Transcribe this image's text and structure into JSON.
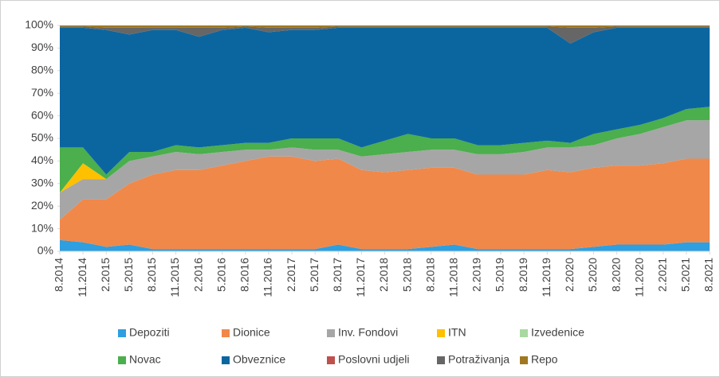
{
  "chart_data": {
    "type": "stacked_area",
    "categories": [
      "8.2014",
      "11.2014",
      "2.2015",
      "5.2015",
      "8.2015",
      "11.2015",
      "2.2016",
      "5.2016",
      "8.2016",
      "11.2016",
      "2.2017",
      "5.2017",
      "8.2017",
      "11.2017",
      "2.2018",
      "5.2018",
      "8.2018",
      "11.2018",
      "2.2019",
      "5.2019",
      "8.2019",
      "11.2019",
      "2.2020",
      "5.2020",
      "8.2020",
      "11.2020",
      "2.2021",
      "5.2021",
      "8.2021"
    ],
    "ylim": [
      0,
      100
    ],
    "yticks": [
      {
        "value": 0,
        "label": "0%"
      },
      {
        "value": 10,
        "label": "10%"
      },
      {
        "value": 20,
        "label": "20%"
      },
      {
        "value": 30,
        "label": "30%"
      },
      {
        "value": 40,
        "label": "40%"
      },
      {
        "value": 50,
        "label": "50%"
      },
      {
        "value": 60,
        "label": "60%"
      },
      {
        "value": 70,
        "label": "70%"
      },
      {
        "value": 80,
        "label": "80%"
      },
      {
        "value": 90,
        "label": "90%"
      },
      {
        "value": 100,
        "label": "100%"
      }
    ],
    "legend": "bottom",
    "series": [
      {
        "name": "Depoziti",
        "color": "#2e9fe0",
        "values": [
          5,
          4,
          2,
          3,
          1,
          1,
          1,
          1,
          1,
          1,
          1,
          1,
          3,
          1,
          1,
          1,
          2,
          3,
          1,
          1,
          1,
          1,
          1,
          2,
          3,
          3,
          3,
          4,
          4
        ]
      },
      {
        "name": "Dionice",
        "color": "#f0884a",
        "values": [
          9,
          19,
          21,
          27,
          33,
          35,
          35,
          37,
          39,
          41,
          41,
          39,
          38,
          35,
          34,
          35,
          35,
          34,
          33,
          33,
          33,
          35,
          34,
          35,
          35,
          35,
          36,
          37,
          37
        ]
      },
      {
        "name": "Inv. Fondovi",
        "color": "#a6a6a6",
        "values": [
          12,
          9,
          9,
          10,
          8,
          8,
          7,
          6,
          5,
          3,
          4,
          5,
          4,
          6,
          8,
          8,
          8,
          8,
          9,
          9,
          10,
          10,
          11,
          10,
          12,
          14,
          16,
          17,
          17
        ]
      },
      {
        "name": "ITN",
        "color": "#ffc000",
        "values": [
          0,
          7,
          0,
          0,
          0,
          0,
          0,
          0,
          0,
          0,
          0,
          0,
          0,
          0,
          0,
          0,
          0,
          0,
          0,
          0,
          0,
          0,
          0,
          0,
          0,
          0,
          0,
          0,
          0
        ]
      },
      {
        "name": "Izvedenice",
        "color": "#a9d9a0",
        "values": [
          0,
          0,
          0,
          0,
          0,
          0,
          0,
          0,
          0,
          0,
          0,
          0,
          0,
          0,
          0,
          0,
          0,
          0,
          0,
          0,
          0,
          0,
          0,
          0,
          0,
          0,
          0,
          0,
          0
        ]
      },
      {
        "name": "Novac",
        "color": "#4aaf4c",
        "values": [
          20,
          7,
          2,
          4,
          2,
          3,
          3,
          3,
          3,
          3,
          4,
          5,
          5,
          4,
          6,
          8,
          5,
          5,
          4,
          4,
          4,
          3,
          2,
          5,
          4,
          4,
          4,
          5,
          6
        ]
      },
      {
        "name": "Obveznice",
        "color": "#0b66a0",
        "values": [
          53,
          53,
          64,
          52,
          54,
          51,
          49,
          51,
          51,
          49,
          48,
          48,
          49,
          53,
          50,
          47,
          49,
          49,
          52,
          52,
          51,
          50,
          44,
          45,
          45,
          43,
          40,
          36,
          35
        ]
      },
      {
        "name": "Poslovni udjeli",
        "color": "#c0504d",
        "values": [
          0,
          0,
          0,
          0,
          0,
          0,
          0,
          0,
          0,
          0,
          0,
          0,
          0,
          0,
          0,
          0,
          0,
          0,
          0,
          0,
          0,
          0,
          0,
          0,
          0,
          0,
          0,
          0,
          0
        ]
      },
      {
        "name": "Potraživanja",
        "color": "#666666",
        "values": [
          0.5,
          0.5,
          1,
          3,
          1,
          1,
          4,
          1,
          0.5,
          2,
          1,
          1,
          0.5,
          0.5,
          0.5,
          0.5,
          0.5,
          0.5,
          0.5,
          0.5,
          0.5,
          0.5,
          7,
          2,
          0.5,
          0.5,
          0.5,
          0.5,
          0.5
        ]
      },
      {
        "name": "Repo",
        "color": "#a07820",
        "values": [
          0.5,
          0.5,
          1,
          1,
          1,
          1,
          1,
          1,
          0.5,
          1,
          1,
          1,
          0.5,
          0.5,
          0.5,
          0.5,
          0.5,
          0.5,
          0.5,
          0.5,
          0.5,
          0.5,
          1,
          1,
          0.5,
          0.5,
          0.5,
          0.5,
          0.5
        ]
      }
    ]
  }
}
